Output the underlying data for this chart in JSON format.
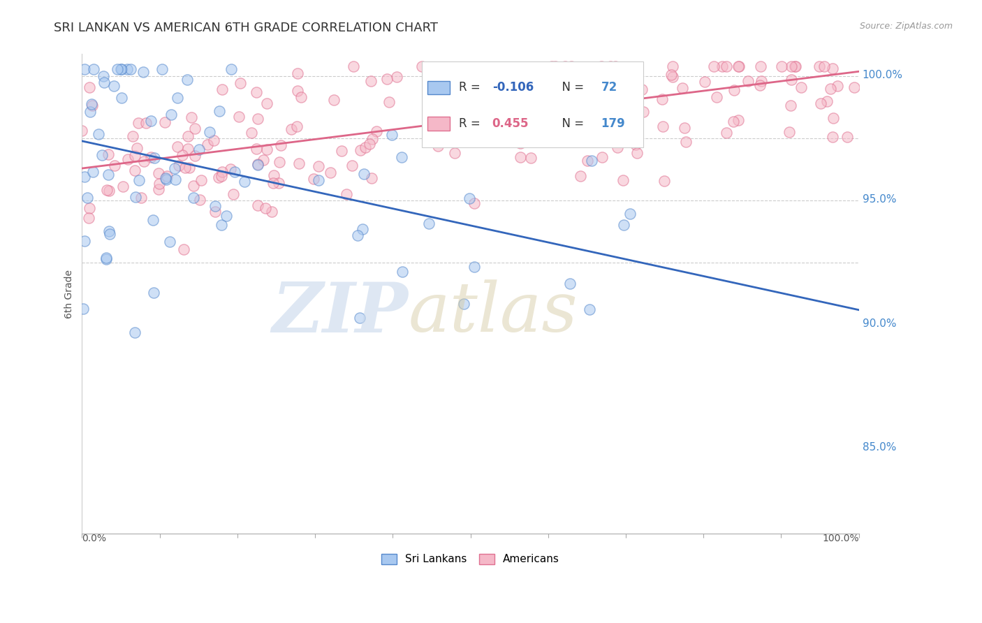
{
  "title": "SRI LANKAN VS AMERICAN 6TH GRADE CORRELATION CHART",
  "source": "Source: ZipAtlas.com",
  "ylabel": "6th Grade",
  "right_yticks": [
    0.85,
    0.9,
    0.95,
    1.0
  ],
  "right_ytick_labels": [
    "85.0%",
    "90.0%",
    "95.0%",
    "100.0%"
  ],
  "blue_color": "#A8C8F0",
  "pink_color": "#F5B8C8",
  "blue_edge_color": "#5588CC",
  "pink_edge_color": "#E07090",
  "blue_line_color": "#3366BB",
  "pink_line_color": "#DD6688",
  "title_color": "#333333",
  "source_color": "#999999",
  "background_color": "#FFFFFF",
  "xlim": [
    0.0,
    1.0
  ],
  "ylim": [
    0.815,
    1.008
  ],
  "blue_trend_x": [
    0.0,
    1.0
  ],
  "blue_trend_y": [
    0.973,
    0.905
  ],
  "pink_trend_x": [
    0.0,
    1.0
  ],
  "pink_trend_y": [
    0.962,
    1.001
  ],
  "dashed_line_y": 0.999,
  "dashed_line2_y": 0.974,
  "dashed_line3_y": 0.949,
  "dashed_line4_y": 0.924,
  "marker_size": 120,
  "marker_lw": 1.0,
  "marker_alpha": 0.55
}
